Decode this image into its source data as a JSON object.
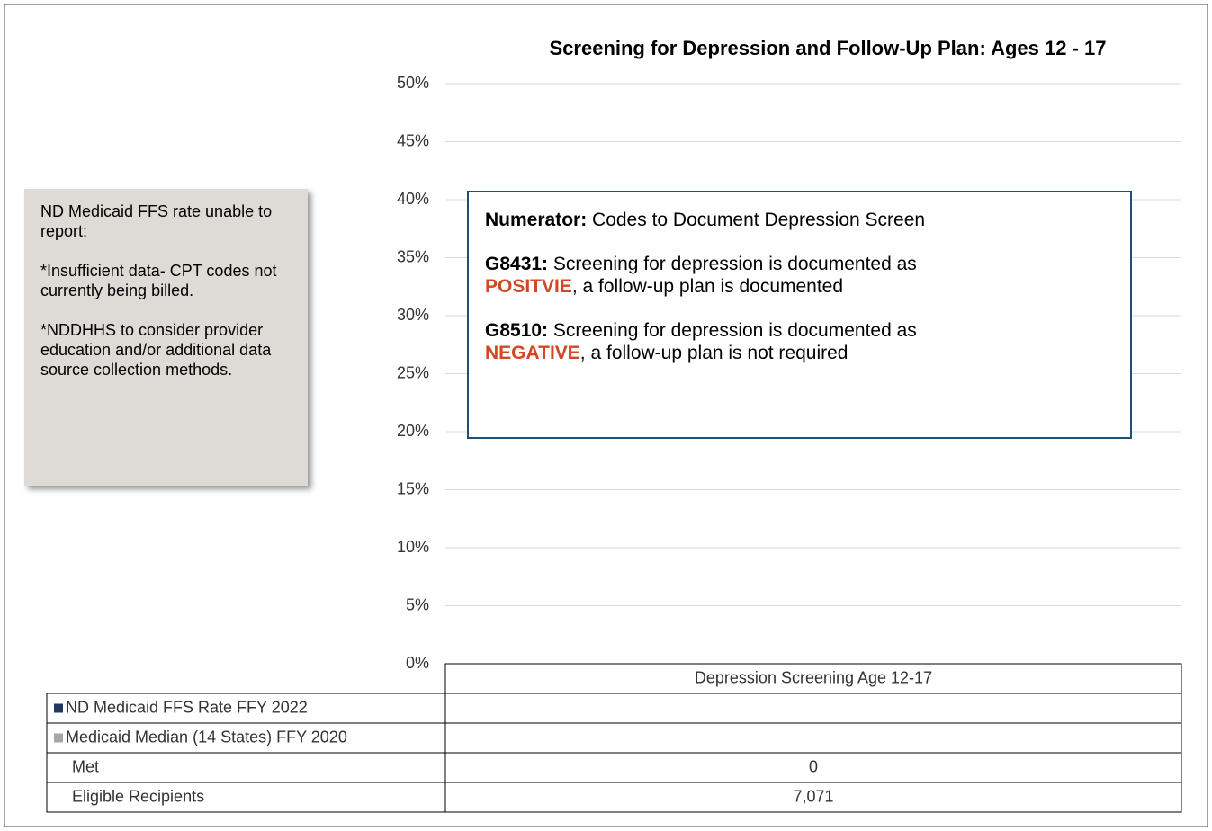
{
  "chart_data": {
    "type": "bar",
    "title": "Screening for Depression and Follow-Up Plan: Ages 12 - 17",
    "categories": [
      "Depression Screening Age 12-17"
    ],
    "series": [
      {
        "name": "ND Medicaid FFS Rate FFY 2022",
        "color": "#1f3864",
        "values": [
          null
        ]
      },
      {
        "name": "Medicaid Median (14 States) FFY 2020",
        "color": "#a6a6a6",
        "values": [
          null
        ]
      }
    ],
    "ylim": [
      0,
      50
    ],
    "yticks": [
      {
        "value": 0,
        "label": "0%"
      },
      {
        "value": 5,
        "label": "5%"
      },
      {
        "value": 10,
        "label": "10%"
      },
      {
        "value": 15,
        "label": "15%"
      },
      {
        "value": 20,
        "label": "20%"
      },
      {
        "value": 25,
        "label": "25%"
      },
      {
        "value": 30,
        "label": "30%"
      },
      {
        "value": 35,
        "label": "35%"
      },
      {
        "value": 40,
        "label": "40%"
      },
      {
        "value": 45,
        "label": "45%"
      },
      {
        "value": 50,
        "label": "50%"
      }
    ],
    "grid": true,
    "data_table": [
      {
        "name": "Met",
        "values": [
          0
        ]
      },
      {
        "name": "Eligible Recipients",
        "values": [
          7071
        ],
        "value_labels": [
          "7,071"
        ]
      }
    ],
    "note": [
      "ND Medicaid FFS rate unable to report:",
      "*Insufficient data- CPT codes not currently being billed.",
      "*NDDHHS to consider provider education and/or additional data source collection methods."
    ],
    "numerator_box": {
      "heading": {
        "label": "Numerator:",
        "text": "Codes to Document Depression Screen"
      },
      "items": [
        {
          "code": "G8431:",
          "pre": "Screening for depression is documented as",
          "result": "POSITVIE",
          "post": ", a follow-up plan is documented"
        },
        {
          "code": "G8510:",
          "pre": "Screening for depression is documented as",
          "result": "NEGATIVE",
          "post": ", a follow-up plan is not required"
        }
      ],
      "result_color": "#d24726"
    }
  }
}
